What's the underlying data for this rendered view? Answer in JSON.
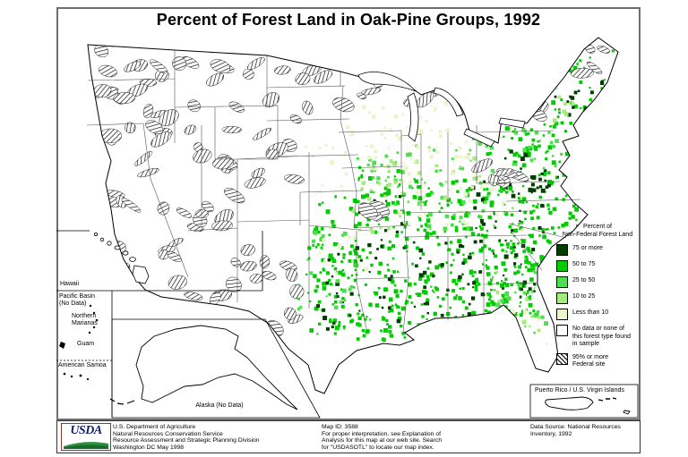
{
  "title": "Percent of Forest Land in Oak-Pine Groups, 1992",
  "legend": {
    "title_line1": "Percent of",
    "title_line2": "Non-Federal Forest Land",
    "items": [
      {
        "label": "75 or more",
        "color": "#003D00",
        "type": "solid"
      },
      {
        "label": "50 to 75",
        "color": "#00CC00",
        "type": "solid"
      },
      {
        "label": "25 to 50",
        "color": "#4FDE4F",
        "type": "solid"
      },
      {
        "label": "10 to 25",
        "color": "#A4EA7C",
        "type": "solid"
      },
      {
        "label": "Less than 10",
        "color": "#EBF5CD",
        "type": "solid"
      },
      {
        "label": "No data or none of this forest type found in sample",
        "color": "#FFFFFF",
        "type": "solid"
      },
      {
        "label": "95% or more Federal site",
        "color": "hatch",
        "type": "hatch"
      }
    ]
  },
  "insets": {
    "hawaii": "Hawaii",
    "pacific_basin": "Pacific Basin (No Data)",
    "northern_marianas": "Northern Marianas",
    "guam": "Guam",
    "american_samoa": "American Samoa",
    "alaska": "Alaska (No Data)",
    "puerto_rico": "Puerto Rico / U.S. Virgin Islands"
  },
  "footer": {
    "logo_text": "USDA",
    "agency_lines": [
      "U.S. Department of Agriculture",
      "Natural Resources Conservation Service",
      "Resource Assessment and Strategic Planning Division",
      "Washington DC   May 1998"
    ],
    "map_id": "Map ID: 3588",
    "note_lines": [
      "For proper interpretation, see Explanation of",
      "Analysis for this map at our web site. Search",
      "for \"USDASOTL\" to locate our map index."
    ],
    "data_source": "Data Source:  National Resources Inventory, 1992"
  }
}
